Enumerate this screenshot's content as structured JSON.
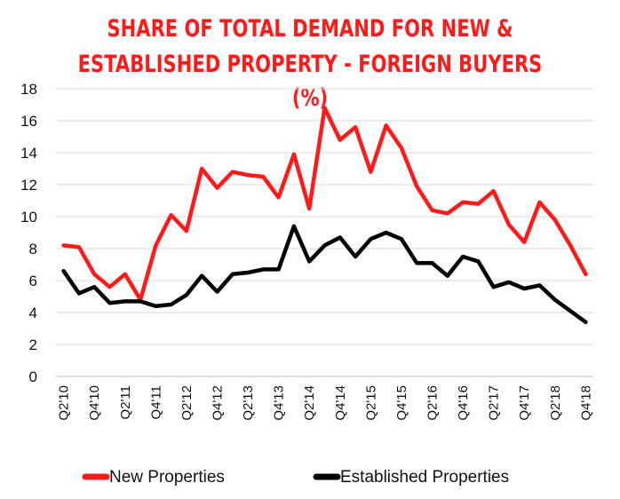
{
  "chart_data": {
    "type": "line",
    "title_line1": "SHARE OF TOTAL DEMAND FOR NEW &",
    "title_line2": "ESTABLISHED PROPERTY - FOREIGN BUYERS (%)",
    "xlabel": "",
    "ylabel": "",
    "ylim": [
      0,
      18
    ],
    "yticks": [
      0,
      2,
      4,
      6,
      8,
      10,
      12,
      14,
      16,
      18
    ],
    "grid": true,
    "legend_position": "bottom",
    "categories": [
      "Q2'10",
      "Q3'10",
      "Q4'10",
      "Q1'11",
      "Q2'11",
      "Q3'11",
      "Q4'11",
      "Q1'12",
      "Q2'12",
      "Q3'12",
      "Q4'12",
      "Q1'13",
      "Q2'13",
      "Q3'13",
      "Q4'13",
      "Q1'14",
      "Q2'14",
      "Q3'14",
      "Q4'14",
      "Q1'15",
      "Q2'15",
      "Q3'15",
      "Q4'15",
      "Q1'16",
      "Q2'16",
      "Q3'16",
      "Q4'16",
      "Q1'17",
      "Q2'17",
      "Q3'17",
      "Q4'17",
      "Q1'18",
      "Q2'18",
      "Q3'18",
      "Q4'18"
    ],
    "tick_labels": [
      "Q2'10",
      "Q4'10",
      "Q2'11",
      "Q4'11",
      "Q2'12",
      "Q4'12",
      "Q2'13",
      "Q4'13",
      "Q2'14",
      "Q4'14",
      "Q2'15",
      "Q4'15",
      "Q2'16",
      "Q4'16",
      "Q2'17",
      "Q4'17",
      "Q2'18",
      "Q4'18"
    ],
    "series": [
      {
        "name": "New Properties",
        "color": "#ff1a1a",
        "values": [
          8.2,
          8.1,
          6.4,
          5.6,
          6.4,
          4.8,
          8.2,
          10.1,
          9.1,
          13.0,
          11.8,
          12.8,
          12.6,
          12.5,
          11.2,
          13.9,
          10.5,
          16.8,
          14.8,
          15.6,
          12.8,
          15.7,
          14.3,
          11.9,
          10.4,
          10.2,
          10.9,
          10.8,
          11.6,
          9.5,
          8.4,
          10.9,
          9.8,
          8.2,
          6.4
        ]
      },
      {
        "name": "Established Properties",
        "color": "#000000",
        "values": [
          6.6,
          5.2,
          5.6,
          4.6,
          4.7,
          4.7,
          4.4,
          4.5,
          5.1,
          6.3,
          5.3,
          6.4,
          6.5,
          6.7,
          6.7,
          9.4,
          7.2,
          8.2,
          8.7,
          7.5,
          8.6,
          9.0,
          8.6,
          7.1,
          7.1,
          6.3,
          7.5,
          7.2,
          5.6,
          5.9,
          5.5,
          5.7,
          4.8,
          4.1,
          3.4
        ]
      }
    ]
  }
}
